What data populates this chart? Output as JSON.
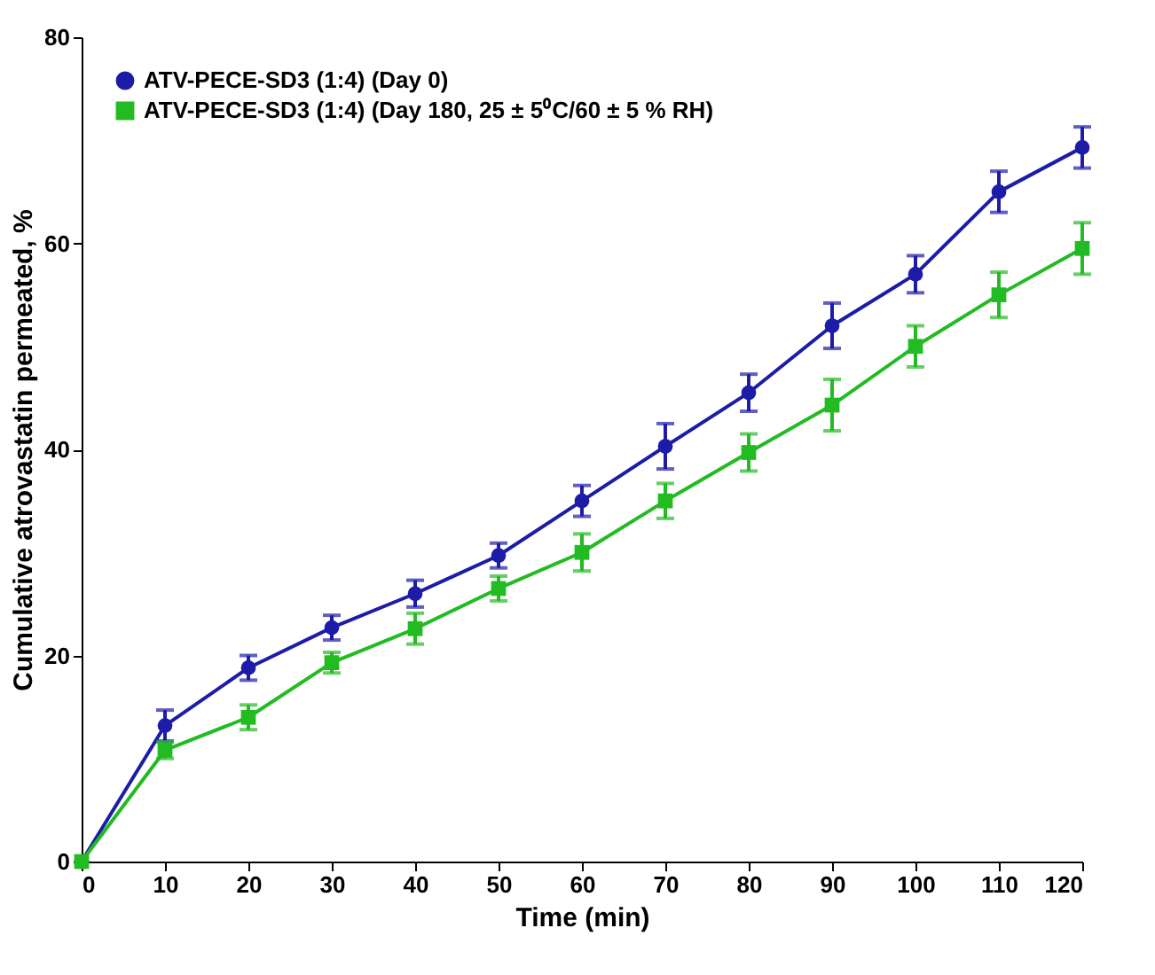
{
  "chart_data": {
    "type": "line",
    "xlabel": "Time (min)",
    "ylabel": "Cumulative atrovastatin permeated, %",
    "x": [
      0,
      10,
      20,
      30,
      40,
      50,
      60,
      70,
      80,
      90,
      100,
      110,
      120
    ],
    "xlim": [
      0,
      120
    ],
    "xticks": [
      0,
      10,
      20,
      30,
      40,
      50,
      60,
      70,
      80,
      90,
      100,
      110,
      120
    ],
    "ylim": [
      0,
      80
    ],
    "yticks": [
      0,
      20,
      40,
      60,
      80
    ],
    "grid": false,
    "legend": "top left",
    "line_style": "solid",
    "series": [
      {
        "name": "ATV-PECE-SD3 (1:4) (Day 0)",
        "color": "#1c1ca8",
        "marker": "circle",
        "values": [
          0,
          13.2,
          18.8,
          22.7,
          26,
          29.7,
          35,
          40.3,
          45.5,
          52,
          57,
          65,
          69.3
        ],
        "errors": [
          null,
          1.5,
          1.2,
          1.2,
          1.3,
          1.2,
          1.5,
          2.2,
          1.8,
          2.2,
          1.8,
          2,
          2
        ]
      },
      {
        "name": "ATV-PECE-SD3 (1:4) (Day 180, 25 ± 5⁰C/60 ± 5 % RH)",
        "color": "#22bb22",
        "marker": "square",
        "values": [
          0,
          10.8,
          14,
          19.3,
          22.6,
          26.5,
          30,
          35,
          39.7,
          44.3,
          50,
          55,
          59.5
        ],
        "errors": [
          null,
          0.8,
          1.2,
          1,
          1.5,
          1.2,
          1.8,
          1.7,
          1.8,
          2.5,
          2,
          2.2,
          2.5
        ]
      }
    ]
  }
}
